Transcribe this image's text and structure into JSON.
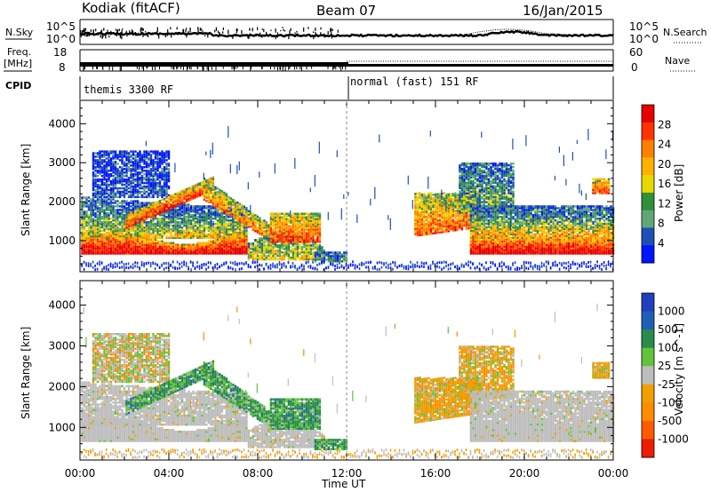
{
  "header": {
    "station": "Kodiak (fitACF)",
    "beam": "Beam 07",
    "date": "16/Jan/2015"
  },
  "top_panels": {
    "nsky_label": "N.Sky",
    "nsky_ticks": [
      "10^5",
      "10^0"
    ],
    "nsearch_label": "N.Search",
    "nsearch_ticks": [
      "10^5",
      "10^0"
    ],
    "freq_label_1": "Freq.",
    "freq_label_2": "[MHz]",
    "freq_ticks": [
      "18",
      "8"
    ],
    "nave_label": "Nave",
    "nave_ticks": [
      "60",
      "0"
    ],
    "cpid_label": "CPID",
    "cpid_segments": [
      {
        "label": "themis 3300 RF",
        "start_hour": 0
      },
      {
        "label": "normal (fast) 151 RF",
        "start_hour": 12
      }
    ]
  },
  "chart_data": [
    {
      "type": "heatmap",
      "panel": "power",
      "ylabel": "Slant Range [km]",
      "xlabel": "",
      "y_ticks": [
        1000,
        2000,
        3000,
        4000
      ],
      "ylim": [
        200,
        4600
      ],
      "x_ticks_hours": [
        0,
        4,
        8,
        12,
        16,
        20,
        24
      ],
      "colorbar": {
        "label": "Power [dB]",
        "tick_labels": [
          "28",
          "24",
          "20",
          "16",
          "12",
          "8",
          "4"
        ],
        "colors_top_to_bottom": [
          "#e60000",
          "#ff3300",
          "#ff8000",
          "#ffb000",
          "#e8d800",
          "#2f8f3a",
          "#5fa777",
          "#1e4fb4",
          "#0014ff"
        ]
      }
    },
    {
      "type": "heatmap",
      "panel": "velocity",
      "ylabel": "Slant Range [km]",
      "xlabel": "Time UT",
      "y_ticks": [
        1000,
        2000,
        3000,
        4000
      ],
      "ylim": [
        200,
        4600
      ],
      "x_ticks_hours": [
        0,
        4,
        8,
        12,
        16,
        20,
        24
      ],
      "x_tick_labels": [
        "00:00",
        "04:00",
        "08:00",
        "12:00",
        "16:00",
        "20:00",
        "00:00"
      ],
      "colorbar": {
        "label": "Velocity [m s^-1]",
        "tick_labels": [
          "1000",
          "500",
          "100",
          "25",
          "-25",
          "-100",
          "-500",
          "-1000"
        ],
        "colors_top_to_bottom": [
          "#1f3fbf",
          "#1e5fb8",
          "#2a8c4a",
          "#62c43a",
          "#bdbdbd",
          "#f0a000",
          "#ff8c00",
          "#ff5a00",
          "#ee1c00"
        ]
      }
    }
  ],
  "colors": {
    "ground_scatter": "#c0c0c0",
    "axis": "#000000"
  }
}
